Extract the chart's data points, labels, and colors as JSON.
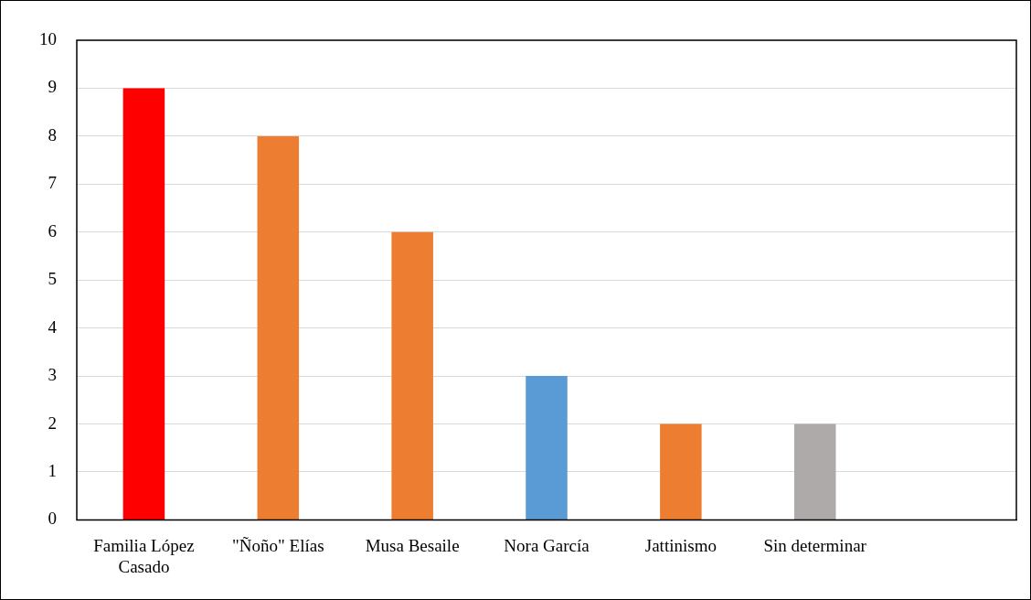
{
  "chart_data": {
    "type": "bar",
    "categories": [
      "Familia López Casado",
      "\"Ñoño\" Elías",
      "Musa Besaile",
      "Nora García",
      "Jattinismo",
      "Sin determinar",
      null
    ],
    "values": [
      9,
      8,
      6,
      3,
      2,
      2,
      null
    ],
    "colors": [
      "#ff0000",
      "#ed7d31",
      "#ed7d31",
      "#5b9bd5",
      "#ed7d31",
      "#aeaaaa",
      "#ed7d31"
    ],
    "ylim": [
      0,
      10
    ],
    "yticks": [
      0,
      1,
      2,
      3,
      4,
      5,
      6,
      7,
      8,
      9,
      10
    ],
    "grid": "y",
    "legend": false
  }
}
